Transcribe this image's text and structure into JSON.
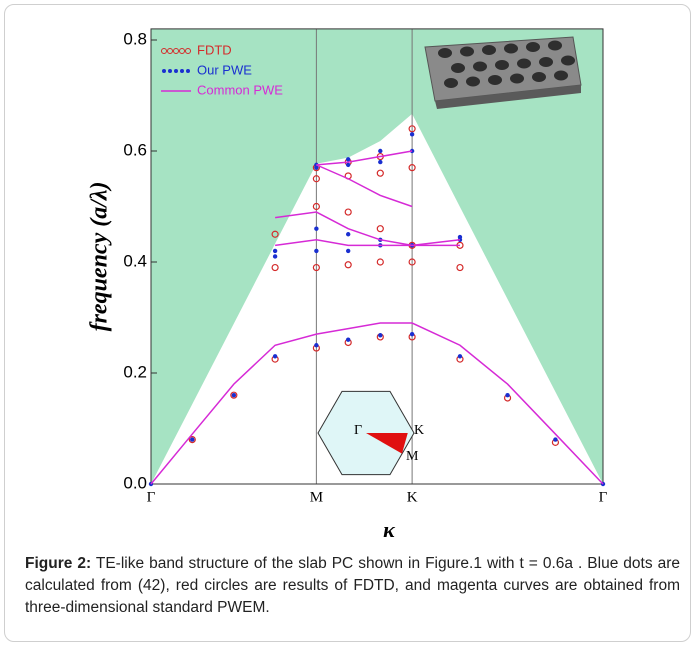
{
  "chart_data": {
    "type": "band",
    "xlabel": "κ",
    "ylabel": "frequency (a/λ)",
    "x": [
      0,
      0.144,
      0.289,
      0.433,
      0.577,
      0.688,
      0.8,
      0.911,
      1.078,
      1.244,
      1.411,
      1.577
    ],
    "xlim": [
      0,
      1.577
    ],
    "ylim": [
      0,
      0.82
    ],
    "xticks": [
      {
        "value": 0,
        "label": "Γ"
      },
      {
        "value": 0.577,
        "label": "M"
      },
      {
        "value": 0.911,
        "label": "K"
      },
      {
        "value": 1.577,
        "label": "Γ"
      }
    ],
    "yticks": [
      {
        "value": 0,
        "label": "0.0"
      },
      0.2,
      0.4,
      0.6,
      0.8
    ],
    "light_cone": {
      "color": "#a6e3c3",
      "values": [
        0,
        0.144,
        0.289,
        0.433,
        0.577,
        0.588,
        0.618,
        0.667,
        0.499,
        0.333,
        0.166,
        0
      ]
    },
    "series": [
      {
        "name": "FDTD",
        "color": "#d42a2a",
        "marker": "circle",
        "bands": [
          [
            null,
            0.08,
            0.16,
            0.225,
            0.245,
            0.255,
            0.265,
            0.265,
            0.225,
            0.155,
            0.075,
            null
          ],
          [
            null,
            null,
            null,
            0.39,
            0.39,
            0.395,
            0.4,
            0.4,
            0.39,
            null,
            null,
            null
          ],
          [
            null,
            null,
            null,
            0.45,
            0.5,
            0.49,
            0.46,
            0.43,
            0.43,
            null,
            null,
            null
          ],
          [
            null,
            null,
            null,
            null,
            0.55,
            0.555,
            0.56,
            0.57,
            null,
            null,
            null,
            null
          ],
          [
            null,
            null,
            null,
            null,
            0.57,
            0.58,
            0.59,
            0.64,
            null,
            null,
            null,
            null
          ]
        ]
      },
      {
        "name": "Our PWE",
        "color": "#1a2fd0",
        "marker": "dot",
        "bands": [
          [
            0,
            0.08,
            0.16,
            0.23,
            0.25,
            0.26,
            0.268,
            0.27,
            0.23,
            0.16,
            0.08,
            0
          ],
          [
            null,
            null,
            null,
            0.42,
            0.46,
            0.45,
            0.44,
            0.43,
            0.44,
            null,
            null,
            null
          ],
          [
            null,
            null,
            null,
            0.41,
            0.42,
            0.42,
            0.43,
            0.43,
            0.445,
            null,
            null,
            null
          ],
          [
            null,
            null,
            null,
            null,
            0.57,
            0.575,
            0.58,
            0.6,
            null,
            null,
            null,
            null
          ],
          [
            null,
            null,
            null,
            null,
            0.575,
            0.585,
            0.6,
            0.63,
            null,
            null,
            null,
            null
          ]
        ]
      },
      {
        "name": "Common PWE",
        "color": "#d62ad6",
        "marker": "line",
        "bands": [
          [
            0,
            0.09,
            0.18,
            0.25,
            0.27,
            0.28,
            0.29,
            0.29,
            0.25,
            0.18,
            0.09,
            0
          ],
          [
            null,
            null,
            null,
            0.48,
            0.49,
            0.46,
            0.44,
            0.43,
            0.44,
            null,
            null,
            null
          ],
          [
            null,
            null,
            null,
            0.43,
            0.44,
            0.43,
            0.43,
            0.43,
            0.43,
            null,
            null,
            null
          ],
          [
            null,
            null,
            null,
            null,
            0.575,
            0.55,
            0.52,
            0.5,
            null,
            null,
            null,
            null
          ],
          [
            null,
            null,
            null,
            null,
            0.575,
            0.58,
            0.59,
            0.6,
            null,
            null,
            null,
            null
          ]
        ]
      }
    ]
  },
  "inset": {
    "labels": [
      "Γ",
      "K",
      "M"
    ]
  },
  "caption": {
    "label": "Figure 2:",
    "text": "TE-like band structure of the slab PC shown in Figure.1 with t = 0.6a . Blue dots are calculated from (42), red circles are results of FDTD, and magenta curves are obtained from three-dimensional standard PWEM."
  }
}
